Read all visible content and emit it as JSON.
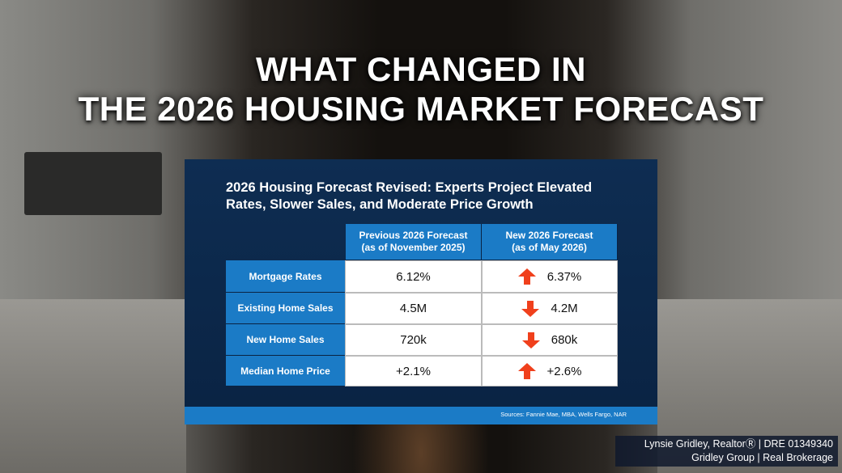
{
  "header": {
    "title_lines": [
      "WHAT CHANGED IN",
      "THE 2026 HOUSING MARKET FORECAST"
    ]
  },
  "card": {
    "title_lines": [
      "2026 Housing Forecast Revised: Experts Project Elevated",
      "Rates, Slower Sales, and Moderate Price Growth"
    ],
    "columns": [
      [
        "Previous 2026 Forecast",
        "(as of November 2025)"
      ],
      [
        "New 2026 Forecast",
        "(as of May 2026)"
      ]
    ],
    "rows": [
      {
        "label": "Mortgage Rates",
        "previous": "6.12%",
        "new": "6.37%",
        "trend": "up"
      },
      {
        "label": "Existing Home Sales",
        "previous": "4.5M",
        "new": "4.2M",
        "trend": "down"
      },
      {
        "label": "New Home Sales",
        "previous": "720k",
        "new": "680k",
        "trend": "down"
      },
      {
        "label": "Median Home Price",
        "previous": "+2.1%",
        "new": "+2.6%",
        "trend": "up"
      }
    ],
    "source": "Sources: Fannie Mae, MBA, Wells Fargo, NAR"
  },
  "footer": {
    "lines": [
      "Lynsie Gridley, RealtorⓇ | DRE 01349340",
      "Gridley Group | Real Brokerage"
    ]
  }
}
